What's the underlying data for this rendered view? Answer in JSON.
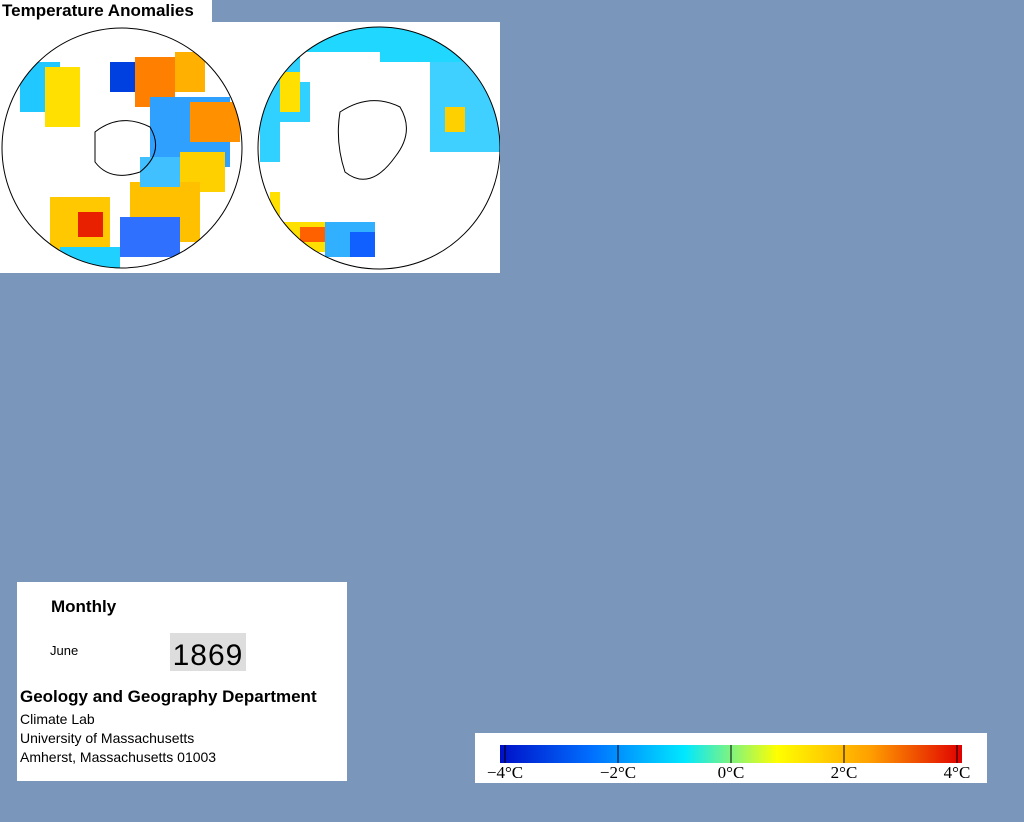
{
  "title": "Temperature Anomalies",
  "info": {
    "period": "Monthly",
    "month": "June",
    "year": "1869",
    "department": "Geology and Geography Department",
    "address": [
      "Climate Lab",
      "University of Massachusetts",
      "Amherst, Massachusetts 01003"
    ]
  },
  "legend": {
    "range": [
      -4,
      4
    ],
    "colors": [
      "#0010c8",
      "#0070ff",
      "#00e8ff",
      "#ffff00",
      "#ffa000",
      "#e00000"
    ],
    "ticks": [
      {
        "value": -4,
        "label": "−4°C"
      },
      {
        "value": -2,
        "label": "−2°C"
      },
      {
        "value": 0,
        "label": "0°C"
      },
      {
        "value": 2,
        "label": "2°C"
      },
      {
        "value": 4,
        "label": "4°C"
      }
    ]
  }
}
